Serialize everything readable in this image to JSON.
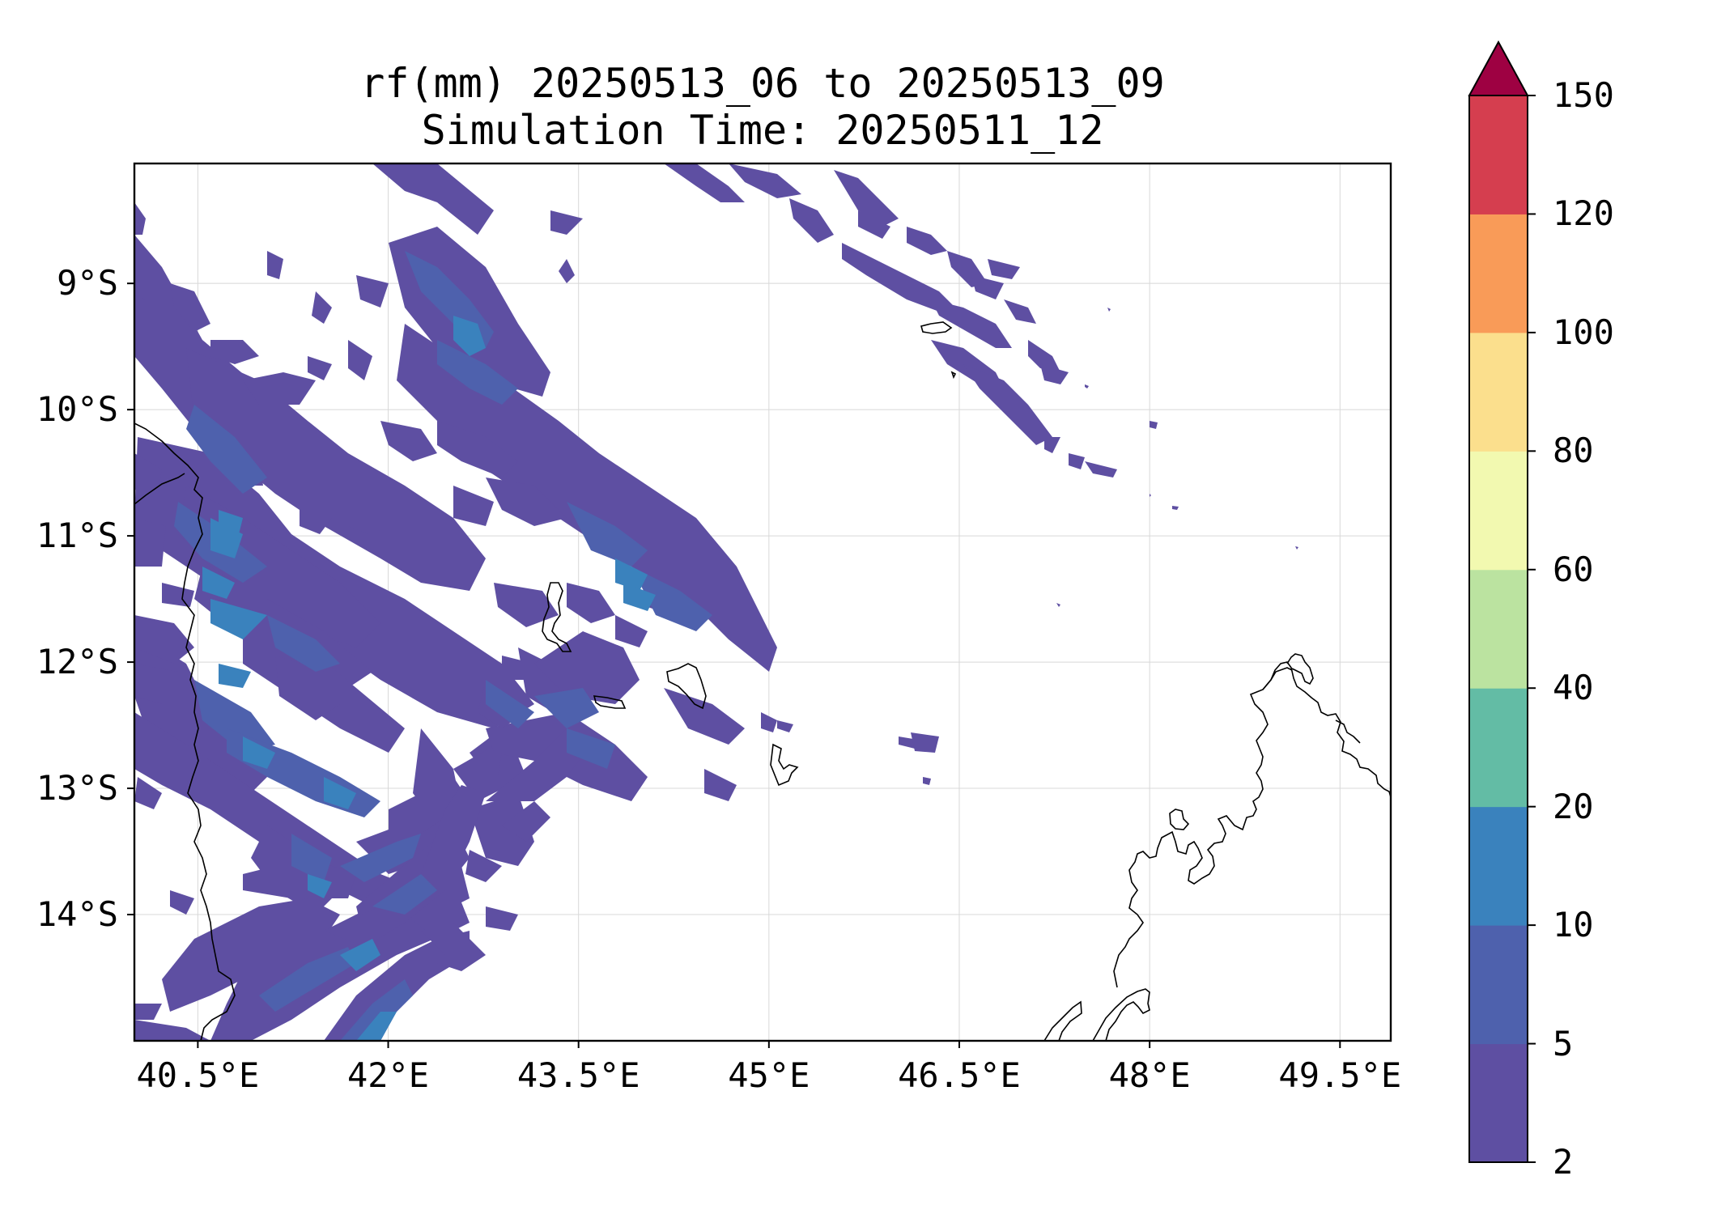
{
  "title": {
    "line1": "rf(mm) 20250513_06 to 20250513_09",
    "line2": "Simulation Time: 20250511_12"
  },
  "map": {
    "lon_range": [
      40.0,
      49.9
    ],
    "lat_range": [
      -15.0,
      -8.05
    ],
    "x_ticks": [
      {
        "value": 40.5,
        "label": "40.5°E"
      },
      {
        "value": 42.0,
        "label": "42°E"
      },
      {
        "value": 43.5,
        "label": "43.5°E"
      },
      {
        "value": 45.0,
        "label": "45°E"
      },
      {
        "value": 46.5,
        "label": "46.5°E"
      },
      {
        "value": 48.0,
        "label": "48°E"
      },
      {
        "value": 49.5,
        "label": "49.5°E"
      }
    ],
    "y_ticks": [
      {
        "value": -9,
        "label": "9°S"
      },
      {
        "value": -10,
        "label": "10°S"
      },
      {
        "value": -11,
        "label": "11°S"
      },
      {
        "value": -12,
        "label": "12°S"
      },
      {
        "value": -13,
        "label": "13°S"
      },
      {
        "value": -14,
        "label": "14°S"
      }
    ],
    "gridlines": true
  },
  "colorbar": {
    "levels": [
      "2",
      "5",
      "10",
      "20",
      "40",
      "60",
      "80",
      "100",
      "120",
      "150"
    ],
    "colors": [
      "#5e4fa2",
      "#4e61ad",
      "#3a82bd",
      "#63bca5",
      "#bbe3a0",
      "#f2f9b0",
      "#fbdf8d",
      "#f99b58",
      "#d53e4f",
      "#9e0142"
    ],
    "extend": "max"
  }
}
